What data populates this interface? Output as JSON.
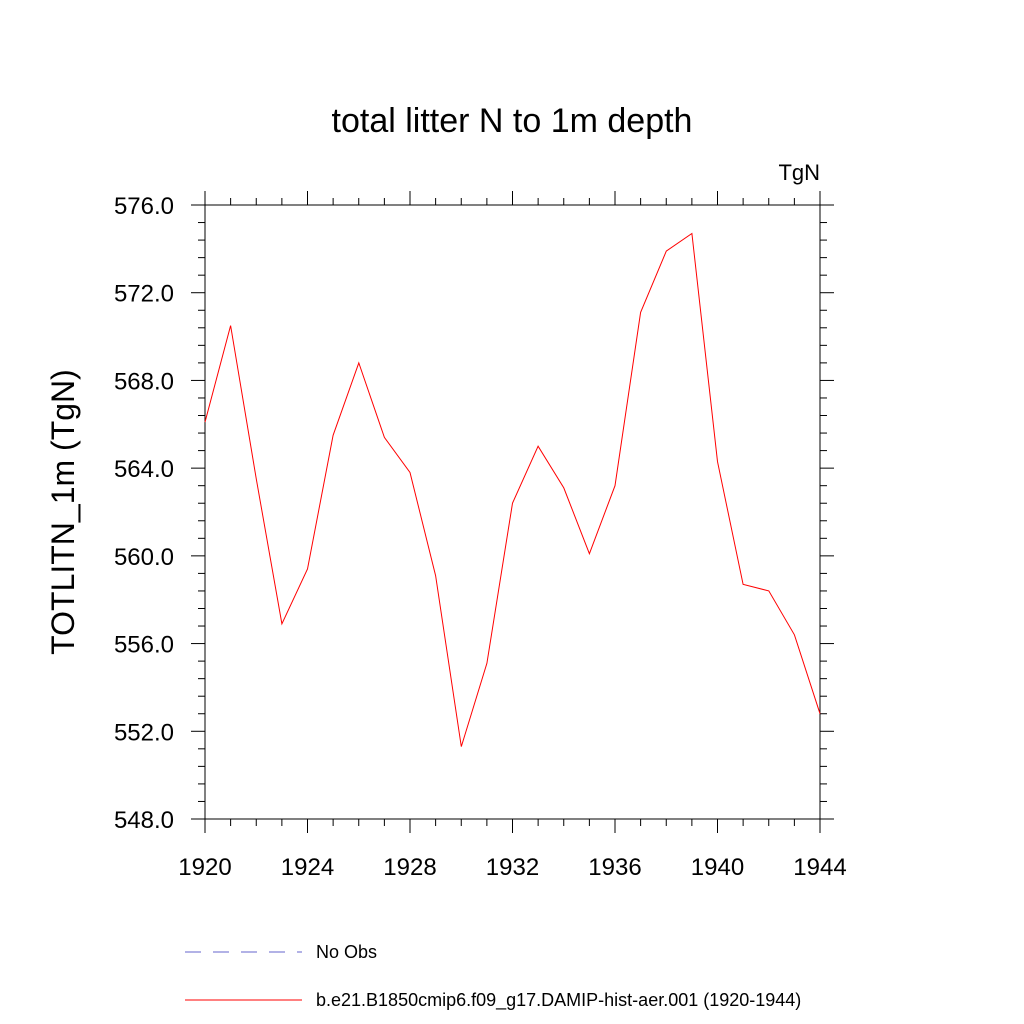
{
  "chart_data": {
    "type": "line",
    "title": "total litter N to 1m depth",
    "units_label": "TgN",
    "ylabel": "TOTLITN_1m  (TgN)",
    "xlabel": "",
    "xlim": [
      1920,
      1944
    ],
    "ylim": [
      548,
      576
    ],
    "x_ticks": [
      "1920",
      "1924",
      "1928",
      "1932",
      "1936",
      "1940",
      "1944"
    ],
    "y_ticks": [
      "576.0",
      "572.0",
      "568.0",
      "564.0",
      "560.0",
      "556.0",
      "552.0",
      "548.0"
    ],
    "grid": false,
    "series": [
      {
        "name": "b.e21.B1850cmip6.f09_g17.DAMIP-hist-aer.001 (1920-1944)",
        "color": "#ff0000",
        "style": "solid",
        "x": [
          1920,
          1921,
          1922,
          1923,
          1924,
          1925,
          1926,
          1927,
          1928,
          1929,
          1930,
          1931,
          1932,
          1933,
          1934,
          1935,
          1936,
          1937,
          1938,
          1939,
          1940,
          1941,
          1942,
          1943,
          1944
        ],
        "y": [
          566.1,
          570.5,
          563.5,
          556.9,
          559.4,
          565.5,
          568.8,
          565.4,
          563.8,
          559.1,
          551.3,
          555.1,
          562.4,
          565.0,
          563.1,
          560.1,
          563.2,
          571.1,
          573.9,
          574.7,
          564.3,
          558.7,
          558.4,
          556.4,
          552.8
        ]
      }
    ],
    "legend": {
      "placement": "bottom",
      "entries": [
        {
          "label": "No Obs",
          "color": "#6666cc",
          "style": "dashed"
        },
        {
          "label": "b.e21.B1850cmip6.f09_g17.DAMIP-hist-aer.001 (1920-1944)",
          "color": "#ff0000",
          "style": "solid"
        }
      ]
    }
  }
}
